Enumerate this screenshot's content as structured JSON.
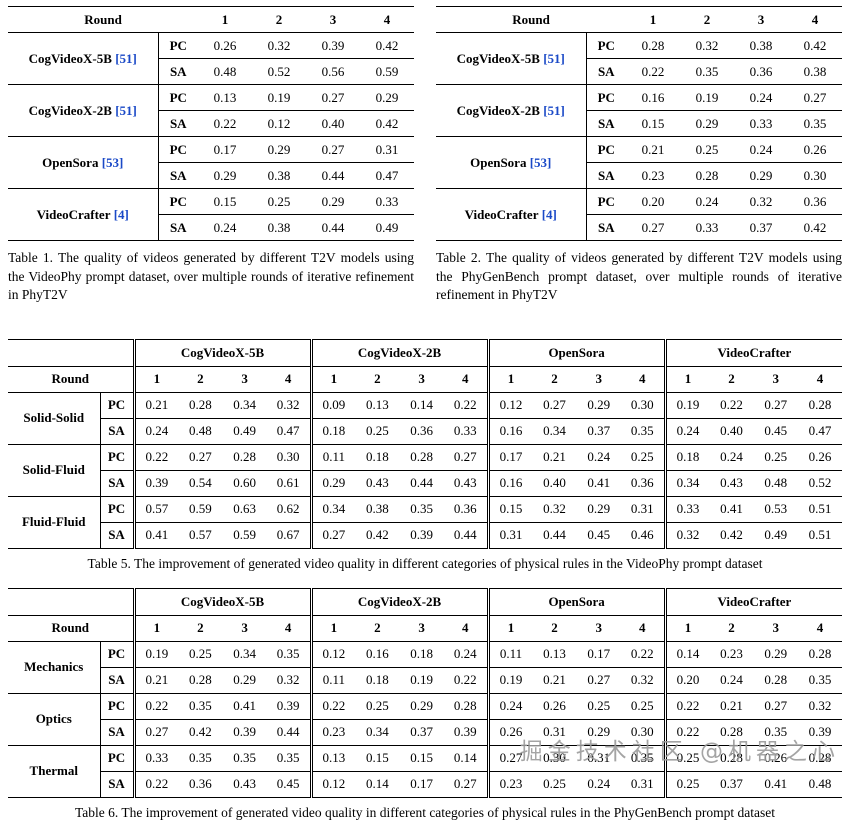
{
  "colors": {
    "citation": "#1a49c7",
    "watermark": "#9b9b9b"
  },
  "labels": {
    "round": "Round",
    "rounds": [
      "1",
      "2",
      "3",
      "4"
    ],
    "pc": "PC",
    "sa": "SA"
  },
  "watermark": "掘金技术社区 @机器之心",
  "table1": {
    "models": [
      {
        "name": "CogVideoX-5B",
        "cite": "[51]",
        "pc": [
          "0.26",
          "0.32",
          "0.39",
          "0.42"
        ],
        "sa": [
          "0.48",
          "0.52",
          "0.56",
          "0.59"
        ]
      },
      {
        "name": "CogVideoX-2B",
        "cite": "[51]",
        "pc": [
          "0.13",
          "0.19",
          "0.27",
          "0.29"
        ],
        "sa": [
          "0.22",
          "0.12",
          "0.40",
          "0.42"
        ]
      },
      {
        "name": "OpenSora",
        "cite": "[53]",
        "pc": [
          "0.17",
          "0.29",
          "0.27",
          "0.31"
        ],
        "sa": [
          "0.29",
          "0.38",
          "0.44",
          "0.47"
        ]
      },
      {
        "name": "VideoCrafter",
        "cite": "[4]",
        "pc": [
          "0.15",
          "0.25",
          "0.29",
          "0.33"
        ],
        "sa": [
          "0.24",
          "0.38",
          "0.44",
          "0.49"
        ]
      }
    ],
    "caption": "Table 1. The quality of videos generated by different T2V models using the VideoPhy prompt dataset, over multiple rounds of iterative refinement in PhyT2V"
  },
  "table2": {
    "models": [
      {
        "name": "CogVideoX-5B",
        "cite": "[51]",
        "pc": [
          "0.28",
          "0.32",
          "0.38",
          "0.42"
        ],
        "sa": [
          "0.22",
          "0.35",
          "0.36",
          "0.38"
        ]
      },
      {
        "name": "CogVideoX-2B",
        "cite": "[51]",
        "pc": [
          "0.16",
          "0.19",
          "0.24",
          "0.27"
        ],
        "sa": [
          "0.15",
          "0.29",
          "0.33",
          "0.35"
        ]
      },
      {
        "name": "OpenSora",
        "cite": "[53]",
        "pc": [
          "0.21",
          "0.25",
          "0.24",
          "0.26"
        ],
        "sa": [
          "0.23",
          "0.28",
          "0.29",
          "0.30"
        ]
      },
      {
        "name": "VideoCrafter",
        "cite": "[4]",
        "pc": [
          "0.20",
          "0.24",
          "0.32",
          "0.36"
        ],
        "sa": [
          "0.27",
          "0.33",
          "0.37",
          "0.42"
        ]
      }
    ],
    "caption": "Table 2. The quality of videos generated by different T2V models using the PhyGenBench prompt dataset, over multiple rounds of iterative refinement in PhyT2V"
  },
  "table5": {
    "model_headers": [
      "CogVideoX-5B",
      "CogVideoX-2B",
      "OpenSora",
      "VideoCrafter"
    ],
    "rows": [
      {
        "category": "Solid-Solid",
        "pc": [
          [
            "0.21",
            "0.28",
            "0.34",
            "0.32"
          ],
          [
            "0.09",
            "0.13",
            "0.14",
            "0.22"
          ],
          [
            "0.12",
            "0.27",
            "0.29",
            "0.30"
          ],
          [
            "0.19",
            "0.22",
            "0.27",
            "0.28"
          ]
        ],
        "sa": [
          [
            "0.24",
            "0.48",
            "0.49",
            "0.47"
          ],
          [
            "0.18",
            "0.25",
            "0.36",
            "0.33"
          ],
          [
            "0.16",
            "0.34",
            "0.37",
            "0.35"
          ],
          [
            "0.24",
            "0.40",
            "0.45",
            "0.47"
          ]
        ]
      },
      {
        "category": "Solid-Fluid",
        "pc": [
          [
            "0.22",
            "0.27",
            "0.28",
            "0.30"
          ],
          [
            "0.11",
            "0.18",
            "0.28",
            "0.27"
          ],
          [
            "0.17",
            "0.21",
            "0.24",
            "0.25"
          ],
          [
            "0.18",
            "0.24",
            "0.25",
            "0.26"
          ]
        ],
        "sa": [
          [
            "0.39",
            "0.54",
            "0.60",
            "0.61"
          ],
          [
            "0.29",
            "0.43",
            "0.44",
            "0.43"
          ],
          [
            "0.16",
            "0.40",
            "0.41",
            "0.36"
          ],
          [
            "0.34",
            "0.43",
            "0.48",
            "0.52"
          ]
        ]
      },
      {
        "category": "Fluid-Fluid",
        "pc": [
          [
            "0.57",
            "0.59",
            "0.63",
            "0.62"
          ],
          [
            "0.34",
            "0.38",
            "0.35",
            "0.36"
          ],
          [
            "0.15",
            "0.32",
            "0.29",
            "0.31"
          ],
          [
            "0.33",
            "0.41",
            "0.53",
            "0.51"
          ]
        ],
        "sa": [
          [
            "0.41",
            "0.57",
            "0.59",
            "0.67"
          ],
          [
            "0.27",
            "0.42",
            "0.39",
            "0.44"
          ],
          [
            "0.31",
            "0.44",
            "0.45",
            "0.46"
          ],
          [
            "0.32",
            "0.42",
            "0.49",
            "0.51"
          ]
        ]
      }
    ],
    "caption": "Table 5. The improvement of generated video quality in different categories of physical rules in the VideoPhy prompt dataset"
  },
  "table6": {
    "model_headers": [
      "CogVideoX-5B",
      "CogVideoX-2B",
      "OpenSora",
      "VideoCrafter"
    ],
    "rows": [
      {
        "category": "Mechanics",
        "pc": [
          [
            "0.19",
            "0.25",
            "0.34",
            "0.35"
          ],
          [
            "0.12",
            "0.16",
            "0.18",
            "0.24"
          ],
          [
            "0.11",
            "0.13",
            "0.17",
            "0.22"
          ],
          [
            "0.14",
            "0.23",
            "0.29",
            "0.28"
          ]
        ],
        "sa": [
          [
            "0.21",
            "0.28",
            "0.29",
            "0.32"
          ],
          [
            "0.11",
            "0.18",
            "0.19",
            "0.22"
          ],
          [
            "0.19",
            "0.21",
            "0.27",
            "0.32"
          ],
          [
            "0.20",
            "0.24",
            "0.28",
            "0.35"
          ]
        ]
      },
      {
        "category": "Optics",
        "pc": [
          [
            "0.22",
            "0.35",
            "0.41",
            "0.39"
          ],
          [
            "0.22",
            "0.25",
            "0.29",
            "0.28"
          ],
          [
            "0.24",
            "0.26",
            "0.25",
            "0.25"
          ],
          [
            "0.22",
            "0.21",
            "0.27",
            "0.32"
          ]
        ],
        "sa": [
          [
            "0.27",
            "0.42",
            "0.39",
            "0.44"
          ],
          [
            "0.23",
            "0.34",
            "0.37",
            "0.39"
          ],
          [
            "0.26",
            "0.31",
            "0.29",
            "0.30"
          ],
          [
            "0.22",
            "0.28",
            "0.35",
            "0.39"
          ]
        ]
      },
      {
        "category": "Thermal",
        "pc": [
          [
            "0.33",
            "0.35",
            "0.35",
            "0.35"
          ],
          [
            "0.13",
            "0.15",
            "0.15",
            "0.14"
          ],
          [
            "0.27",
            "0.30",
            "0.31",
            "0.35"
          ],
          [
            "0.25",
            "0.28",
            "0.26",
            "0.28"
          ]
        ],
        "sa": [
          [
            "0.22",
            "0.36",
            "0.43",
            "0.45"
          ],
          [
            "0.12",
            "0.14",
            "0.17",
            "0.27"
          ],
          [
            "0.23",
            "0.25",
            "0.24",
            "0.31"
          ],
          [
            "0.25",
            "0.37",
            "0.41",
            "0.48"
          ]
        ]
      }
    ],
    "caption": "Table 6. The improvement of generated video quality in different categories of physical rules in the PhyGenBench prompt dataset"
  }
}
